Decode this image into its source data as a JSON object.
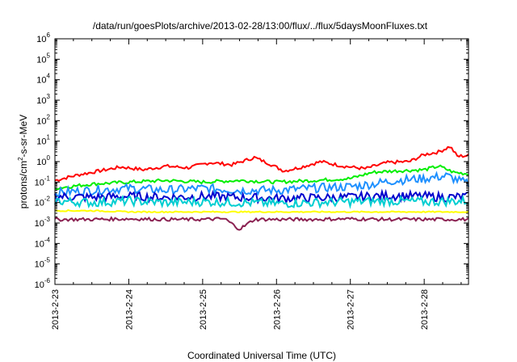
{
  "chart_data": {
    "type": "line",
    "title": "/data/run/goesPlots/archive/2013-02-28/13:00/flux/../flux/5daysMoonFluxes.txt",
    "xlabel": "Coordinated Universal Time (UTC)",
    "ylabel_parts": {
      "pre": "protons/cm",
      "sup": "2",
      "post": "-s-sr-MeV"
    },
    "yscale": "log",
    "ylim": [
      1e-06,
      1000000.0
    ],
    "y_ticks": [
      {
        "base": "10",
        "exp": "-6"
      },
      {
        "base": "10",
        "exp": "-5"
      },
      {
        "base": "10",
        "exp": "-4"
      },
      {
        "base": "10",
        "exp": "-3"
      },
      {
        "base": "10",
        "exp": "-2"
      },
      {
        "base": "10",
        "exp": "-1"
      },
      {
        "base": "10",
        "exp": "0"
      },
      {
        "base": "10",
        "exp": "1"
      },
      {
        "base": "10",
        "exp": "2"
      },
      {
        "base": "10",
        "exp": "3"
      },
      {
        "base": "10",
        "exp": "4"
      },
      {
        "base": "10",
        "exp": "5"
      },
      {
        "base": "10",
        "exp": "6"
      }
    ],
    "xlim_days": [
      0,
      5.6
    ],
    "x_tick_labels": [
      "2013-2-23",
      "2013-2-24",
      "2013-2-25",
      "2013-2-26",
      "2013-2-27",
      "2013-2-28"
    ],
    "grid": false,
    "series": [
      {
        "color": "#ff0000",
        "x": [
          0,
          0.3,
          0.6,
          0.9,
          1.2,
          1.5,
          1.8,
          2.1,
          2.4,
          2.7,
          2.9,
          3.1,
          3.3,
          3.6,
          3.9,
          4.2,
          4.5,
          4.8,
          5.0,
          5.2,
          5.35,
          5.45,
          5.6
        ],
        "y": [
          0.12,
          0.22,
          0.35,
          0.55,
          0.4,
          0.6,
          0.5,
          0.9,
          0.7,
          1.6,
          0.8,
          0.35,
          0.5,
          1.0,
          0.6,
          0.45,
          0.9,
          1.0,
          2.2,
          3.0,
          5.5,
          1.8,
          2.0
        ]
      },
      {
        "color": "#00ee00",
        "x": [
          0,
          0.5,
          1.0,
          1.5,
          2.0,
          2.5,
          3.0,
          3.5,
          4.0,
          4.3,
          4.6,
          5.0,
          5.2,
          5.4,
          5.6
        ],
        "y": [
          0.05,
          0.08,
          0.1,
          0.12,
          0.1,
          0.12,
          0.1,
          0.12,
          0.15,
          0.3,
          0.35,
          0.4,
          0.6,
          0.3,
          0.25
        ]
      },
      {
        "color": "#1e90ff",
        "x": [
          0,
          0.5,
          1.0,
          1.5,
          2.0,
          2.5,
          3.0,
          3.5,
          4.0,
          4.3,
          4.6,
          5.0,
          5.3,
          5.6
        ],
        "y": [
          0.03,
          0.04,
          0.05,
          0.04,
          0.05,
          0.04,
          0.04,
          0.05,
          0.06,
          0.08,
          0.12,
          0.15,
          0.2,
          0.08
        ]
      },
      {
        "color": "#0000cd",
        "x": [
          0,
          0.5,
          1.0,
          1.5,
          2.0,
          2.5,
          3.0,
          3.5,
          4.0,
          4.5,
          5.0,
          5.3,
          5.6
        ],
        "y": [
          0.02,
          0.018,
          0.02,
          0.018,
          0.02,
          0.018,
          0.016,
          0.017,
          0.018,
          0.022,
          0.02,
          0.018,
          0.02
        ]
      },
      {
        "color": "#00ced1",
        "x": [
          0,
          0.5,
          1.0,
          1.5,
          2.0,
          2.5,
          3.0,
          3.5,
          4.0,
          4.5,
          5.0,
          5.6
        ],
        "y": [
          0.012,
          0.01,
          0.012,
          0.01,
          0.011,
          0.01,
          0.009,
          0.01,
          0.011,
          0.012,
          0.011,
          0.012
        ]
      },
      {
        "color": "#ffff00",
        "x": [
          0,
          0.5,
          1.0,
          1.5,
          2.0,
          2.5,
          3.0,
          3.5,
          4.0,
          4.5,
          5.0,
          5.6
        ],
        "y": [
          0.004,
          0.004,
          0.0035,
          0.0035,
          0.0035,
          0.0035,
          0.0035,
          0.0035,
          0.0035,
          0.0035,
          0.0035,
          0.0035
        ]
      },
      {
        "color": "#8b2252",
        "x": [
          0,
          0.5,
          1.0,
          1.5,
          2.0,
          2.3,
          2.5,
          2.7,
          3.0,
          3.5,
          4.0,
          4.5,
          5.0,
          5.6
        ],
        "y": [
          0.0015,
          0.0015,
          0.0016,
          0.0015,
          0.0015,
          0.0016,
          0.0005,
          0.0015,
          0.0015,
          0.0015,
          0.0016,
          0.0015,
          0.0015,
          0.0015
        ]
      }
    ]
  }
}
